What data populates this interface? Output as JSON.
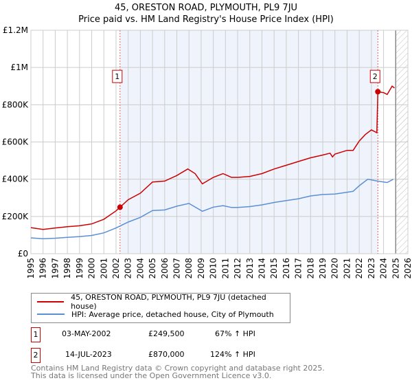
{
  "chart_data": {
    "type": "line",
    "title": "45, ORESTON ROAD, PLYMOUTH, PL9 7JU",
    "subtitle": "Price paid vs. HM Land Registry's House Price Index (HPI)",
    "xlim": [
      1995,
      2026
    ],
    "ylim": [
      0,
      1200000
    ],
    "y_ticks": [
      {
        "v": 0,
        "label": "£0"
      },
      {
        "v": 200000,
        "label": "£200K"
      },
      {
        "v": 400000,
        "label": "£400K"
      },
      {
        "v": 600000,
        "label": "£600K"
      },
      {
        "v": 800000,
        "label": "£800K"
      },
      {
        "v": 1000000,
        "label": "£1M"
      },
      {
        "v": 1200000,
        "label": "£1.2M"
      }
    ],
    "x_ticks": [
      "1995",
      "1996",
      "1997",
      "1998",
      "1999",
      "2000",
      "2001",
      "2002",
      "2003",
      "2004",
      "2005",
      "2006",
      "2007",
      "2008",
      "2009",
      "2010",
      "2011",
      "2012",
      "2013",
      "2014",
      "2015",
      "2016",
      "2017",
      "2018",
      "2019",
      "2020",
      "2021",
      "2022",
      "2023",
      "2024",
      "2025",
      "2026"
    ],
    "grid": true,
    "series": [
      {
        "name": "45, ORESTON ROAD, PLYMOUTH, PL9 7JU (detached house)",
        "color": "#cc0000",
        "x": [
          1995,
          1996,
          1997,
          1998,
          1999,
          2000,
          2001,
          2002,
          2002.33,
          2003,
          2004,
          2005,
          2006,
          2007,
          2007.9,
          2008.5,
          2009.1,
          2010,
          2010.8,
          2011.5,
          2012,
          2013,
          2014,
          2015,
          2016,
          2017,
          2018,
          2019,
          2019.6,
          2019.8,
          2020,
          2021,
          2021.5,
          2022,
          2022.5,
          2023,
          2023.45,
          2023.53,
          2024,
          2024.3,
          2024.7,
          2024.9
        ],
        "y": [
          140000,
          130000,
          138000,
          145000,
          150000,
          160000,
          185000,
          230000,
          249500,
          290000,
          325000,
          385000,
          390000,
          420000,
          455000,
          430000,
          375000,
          410000,
          430000,
          410000,
          410000,
          415000,
          430000,
          455000,
          475000,
          495000,
          515000,
          530000,
          540000,
          520000,
          535000,
          555000,
          555000,
          605000,
          640000,
          665000,
          650000,
          870000,
          865000,
          855000,
          900000,
          890000
        ]
      },
      {
        "name": "HPI: Average price, detached house, City of Plymouth",
        "color": "#5b8fd4",
        "x": [
          1995,
          1996,
          1997,
          1998,
          1999,
          2000,
          2001,
          2002,
          2003,
          2004,
          2005,
          2006,
          2007,
          2008,
          2009.1,
          2010,
          2010.8,
          2011.5,
          2012,
          2013,
          2014,
          2015,
          2016,
          2017,
          2018,
          2019,
          2020,
          2021,
          2021.5,
          2022,
          2022.7,
          2023.5,
          2024.3,
          2024.8
        ],
        "y": [
          85000,
          80000,
          83000,
          88000,
          92000,
          98000,
          112000,
          138000,
          170000,
          195000,
          232000,
          235000,
          255000,
          270000,
          228000,
          250000,
          258000,
          248000,
          248000,
          253000,
          262000,
          275000,
          285000,
          295000,
          310000,
          318000,
          320000,
          330000,
          335000,
          365000,
          400000,
          390000,
          382000,
          400000
        ]
      }
    ],
    "sales": [
      {
        "label": "1",
        "x": 2002.33,
        "y": 249500,
        "date": "03-MAY-2002",
        "price": "£249,500",
        "hpi": "67% ↑ HPI"
      },
      {
        "label": "2",
        "x": 2023.53,
        "y": 870000,
        "date": "14-JUL-2023",
        "price": "£870,000",
        "hpi": "124% ↑ HPI"
      }
    ],
    "forecast_start": 2025,
    "legend": "below"
  },
  "footer": {
    "line1": "Contains HM Land Registry data © Crown copyright and database right 2025.",
    "line2": "This data is licensed under the Open Government Licence v3.0."
  }
}
